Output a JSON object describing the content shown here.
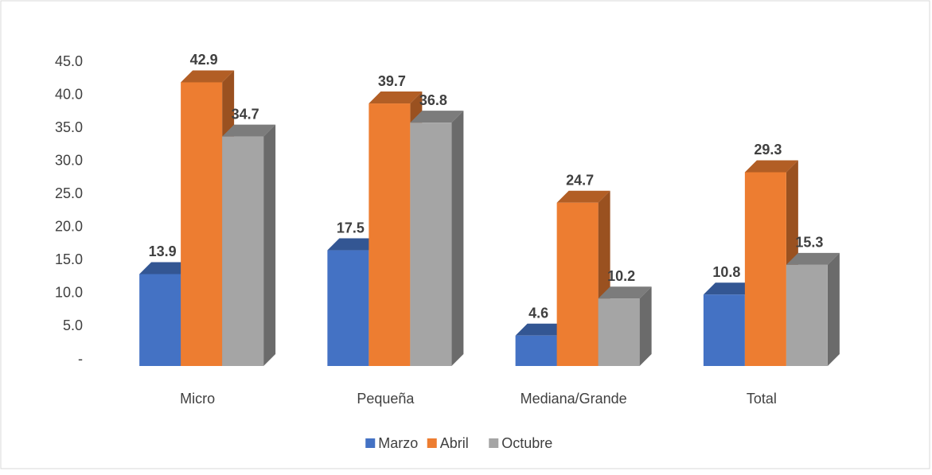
{
  "chart_data": {
    "type": "bar3d",
    "categories": [
      "Micro",
      "Pequeña",
      "Mediana/Grande",
      "Total"
    ],
    "series": [
      {
        "name": "Marzo",
        "color": "#4472c4",
        "values": [
          13.9,
          17.5,
          4.6,
          10.8
        ]
      },
      {
        "name": "Abril",
        "color": "#ed7d31",
        "values": [
          42.9,
          39.7,
          24.7,
          29.3
        ]
      },
      {
        "name": "Octubre",
        "color": "#a5a5a5",
        "values": [
          34.7,
          36.8,
          10.2,
          15.3
        ]
      }
    ],
    "ylim": [
      0,
      45
    ],
    "yticks": [
      {
        "value": 0,
        "label": "-"
      },
      {
        "value": 5,
        "label": "5.0"
      },
      {
        "value": 10,
        "label": "10.0"
      },
      {
        "value": 15,
        "label": "15.0"
      },
      {
        "value": 20,
        "label": "20.0"
      },
      {
        "value": 25,
        "label": "25.0"
      },
      {
        "value": 30,
        "label": "30.0"
      },
      {
        "value": 35,
        "label": "35.0"
      },
      {
        "value": 40,
        "label": "40.0"
      },
      {
        "value": 45,
        "label": "45.0"
      }
    ],
    "legend": "bottom"
  }
}
